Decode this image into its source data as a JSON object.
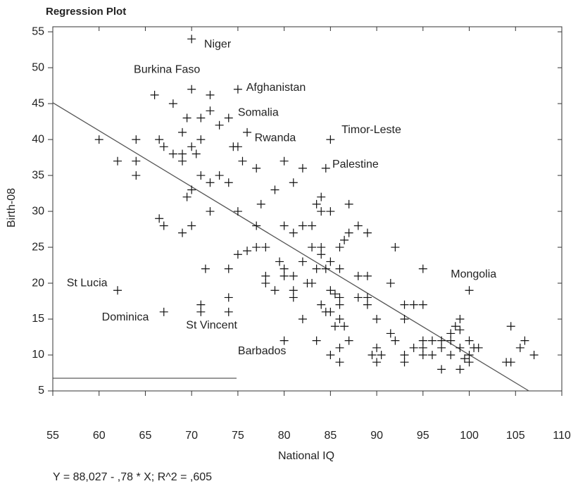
{
  "chart_data": {
    "type": "scatter",
    "title": "Regression Plot",
    "xlabel": "National IQ",
    "ylabel": "Birth-08",
    "xlim": [
      55,
      110
    ],
    "ylim": [
      5,
      55.7
    ],
    "xticks": [
      55,
      60,
      65,
      70,
      75,
      80,
      85,
      90,
      95,
      100,
      105,
      110
    ],
    "yticks": [
      5,
      10,
      15,
      20,
      25,
      30,
      35,
      40,
      45,
      50,
      55
    ],
    "marker": "+",
    "color": "#111111",
    "regression": {
      "intercept": 88.027,
      "slope": -0.78,
      "color": "#555555"
    },
    "equation": "Y = 88,027 - ,78 * X;  R^2 = ,605",
    "x": [
      70,
      70,
      72,
      66,
      75,
      68,
      72,
      71,
      69.5,
      74,
      73,
      76,
      69,
      71,
      64,
      60,
      66.5,
      67,
      70,
      74.5,
      75,
      85,
      68,
      69,
      70.5,
      62,
      64,
      69,
      75.5,
      77,
      80,
      81,
      82,
      84.5,
      64,
      71,
      73,
      72,
      74,
      79,
      70,
      69.5,
      84,
      83.5,
      77.5,
      87,
      84,
      85,
      72,
      75,
      66.5,
      67,
      70,
      77,
      80,
      82,
      83,
      88,
      69,
      81,
      87,
      89,
      86.5,
      83,
      84,
      86,
      92,
      76,
      75,
      77,
      78,
      84,
      85,
      79.5,
      82,
      71.5,
      74,
      80,
      83.5,
      84.5,
      86,
      95,
      78,
      80,
      81,
      88,
      89,
      78,
      82.5,
      83,
      91.5,
      62,
      79,
      81,
      85,
      85.5,
      89,
      100,
      74,
      81,
      86,
      88,
      93,
      94,
      95,
      71,
      84,
      86,
      89,
      71,
      74,
      67,
      84.5,
      85,
      86,
      82,
      90,
      93,
      99,
      85.5,
      86.5,
      91.5,
      95,
      96,
      97,
      98,
      98.5,
      99,
      98,
      100,
      104.5,
      92,
      80,
      87,
      83.5,
      90,
      86,
      94,
      95,
      97,
      99,
      100.5,
      101,
      105.5,
      106,
      93,
      95,
      96,
      98,
      100,
      107,
      85,
      89.5,
      90.5,
      99,
      97,
      93,
      86,
      90,
      104,
      104.5,
      100,
      99.5
    ],
    "y": [
      54,
      47,
      46.2,
      46.2,
      47,
      45,
      44,
      43,
      43,
      43,
      42,
      41,
      41,
      40,
      40,
      40,
      40,
      39,
      39,
      39,
      39,
      40,
      38,
      38,
      38,
      37,
      37,
      37,
      37,
      36,
      37,
      34,
      36,
      36,
      35,
      35,
      35,
      34,
      34,
      33,
      33,
      32,
      32,
      31,
      31,
      31,
      30,
      30,
      30,
      30,
      29,
      28,
      28,
      28,
      28,
      28,
      28,
      28,
      27,
      27,
      27,
      27,
      26,
      25,
      25,
      25,
      25,
      24.5,
      24,
      25,
      25,
      24,
      23,
      23,
      23,
      22,
      22,
      22,
      22,
      22,
      22,
      22,
      21,
      21,
      21,
      21,
      21,
      20,
      20,
      20,
      20,
      19,
      19,
      19,
      19,
      18.5,
      18,
      19,
      18,
      18,
      18,
      18,
      17,
      17,
      17,
      17,
      17,
      17,
      17,
      16,
      16,
      16,
      16,
      16,
      15,
      15,
      15,
      15,
      15,
      14,
      14,
      13,
      12,
      12,
      12,
      13,
      14,
      13.5,
      12,
      12,
      14,
      12,
      12,
      12,
      12,
      11,
      11,
      11,
      11,
      11,
      11,
      11,
      11,
      11,
      12,
      10,
      10,
      10,
      10,
      10,
      10,
      10,
      10,
      10,
      8,
      8,
      9,
      9,
      9,
      9,
      9,
      9,
      9.5
    ],
    "annotations": [
      {
        "text": "Niger",
        "x": 71.35,
        "y": 53.2
      },
      {
        "text": "Burkina Faso",
        "x": 63.75,
        "y": 49.7
      },
      {
        "text": "Afghanistan",
        "x": 75.9,
        "y": 47.2
      },
      {
        "text": "Somalia",
        "x": 75,
        "y": 43.7
      },
      {
        "text": "Rwanda",
        "x": 76.8,
        "y": 40.2
      },
      {
        "text": "Timor-Leste",
        "x": 86.2,
        "y": 41.3
      },
      {
        "text": "Palestine",
        "x": 85.2,
        "y": 36.5
      },
      {
        "text": "Mongolia",
        "x": 98,
        "y": 21.2
      },
      {
        "text": "St Lucia",
        "x": 56.5,
        "y": 20
      },
      {
        "text": "Dominica",
        "x": 60.3,
        "y": 15.2
      },
      {
        "text": "St Vincent",
        "x": 69.4,
        "y": 14.1
      },
      {
        "text": "Barbados",
        "x": 75,
        "y": 10.5
      }
    ]
  }
}
